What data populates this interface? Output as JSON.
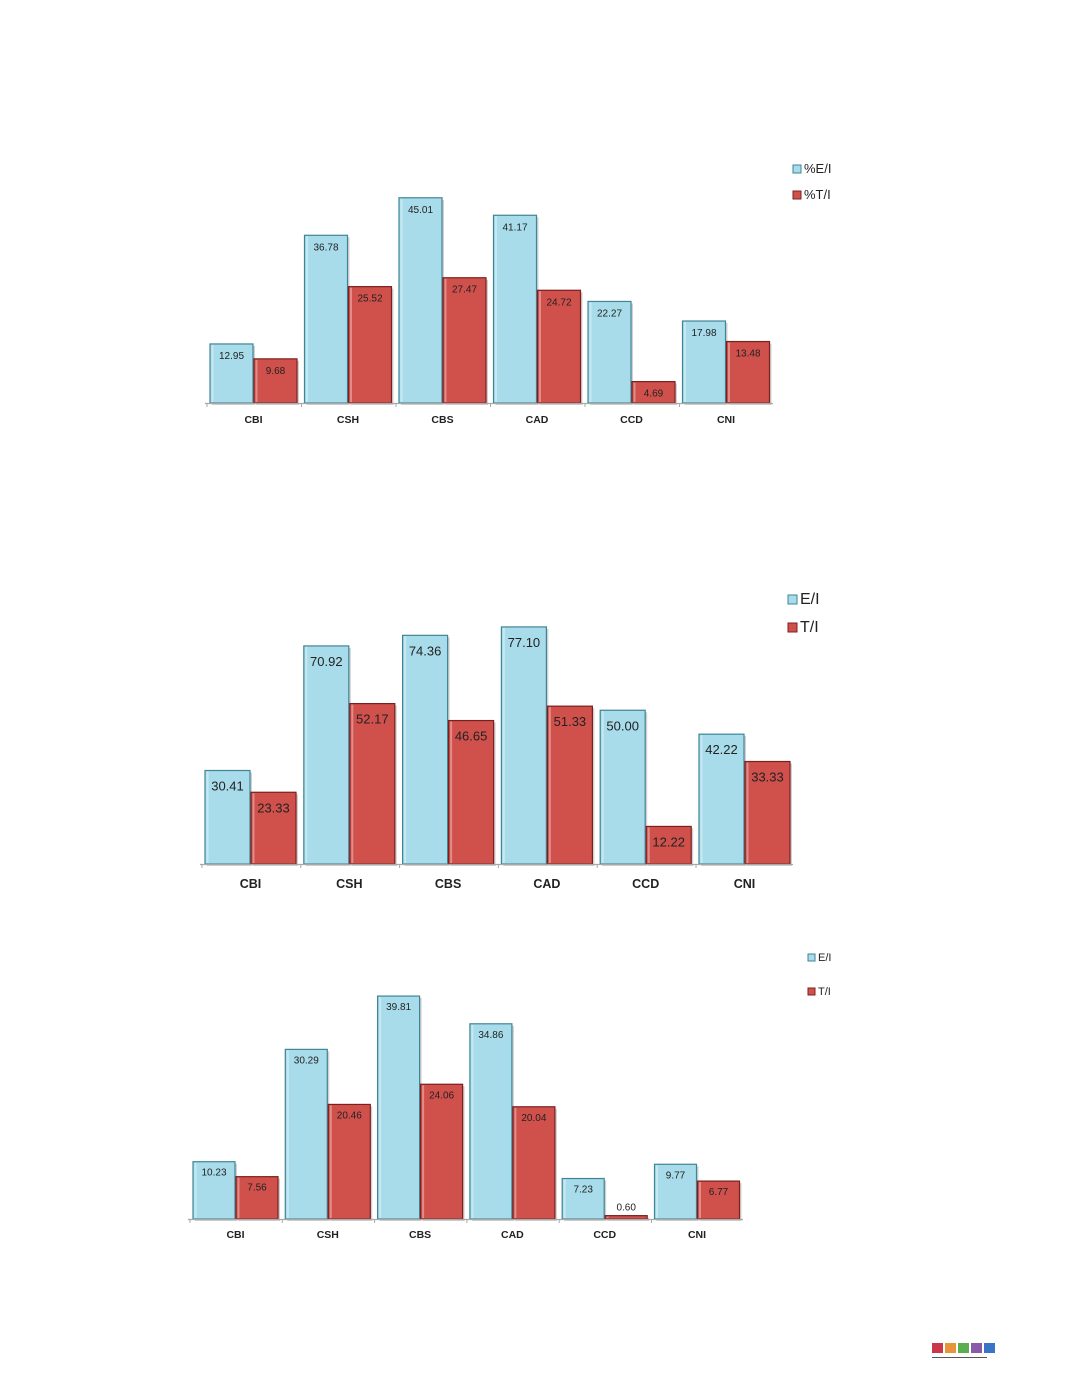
{
  "chart_data": [
    {
      "type": "bar",
      "categories": [
        "CBI",
        "CSH",
        "CBS",
        "CAD",
        "CCD",
        "CNI"
      ],
      "series": [
        {
          "name": "%E/I",
          "values": [
            12.95,
            36.78,
            45.01,
            41.17,
            22.27,
            17.98
          ]
        },
        {
          "name": "%T/I",
          "values": [
            9.68,
            25.52,
            27.47,
            24.72,
            4.69,
            13.48
          ]
        }
      ],
      "value_labels": [
        [
          "12.95",
          "36.78",
          "45.01",
          "41.17",
          "22.27",
          "17.98"
        ],
        [
          "9.68",
          "25.52",
          "27.47",
          "24.72",
          "4.69",
          "13.48"
        ]
      ],
      "title": "",
      "xlabel": "",
      "ylabel": "",
      "ylim": [
        0,
        50
      ],
      "grid": false,
      "legend": "top-right"
    },
    {
      "type": "bar",
      "categories": [
        "CBI",
        "CSH",
        "CBS",
        "CAD",
        "CCD",
        "CNI"
      ],
      "series": [
        {
          "name": "E/I",
          "values": [
            30.41,
            70.92,
            74.36,
            77.1,
            50.0,
            42.22
          ]
        },
        {
          "name": "T/I",
          "values": [
            23.33,
            52.17,
            46.65,
            51.33,
            12.22,
            33.33
          ]
        }
      ],
      "value_labels": [
        [
          "30.41",
          "70.92",
          "74.36",
          "77.10",
          "50.00",
          "42.22"
        ],
        [
          "23.33",
          "52.17",
          "46.65",
          "51.33",
          "12.22",
          "33.33"
        ]
      ],
      "title": "",
      "xlabel": "",
      "ylabel": "",
      "ylim": [
        0,
        80
      ],
      "grid": false,
      "legend": "top-right"
    },
    {
      "type": "bar",
      "categories": [
        "CBI",
        "CSH",
        "CBS",
        "CAD",
        "CCD",
        "CNI"
      ],
      "series": [
        {
          "name": "E/I",
          "values": [
            10.23,
            30.29,
            39.81,
            34.86,
            7.23,
            9.77
          ]
        },
        {
          "name": "T/I",
          "values": [
            7.56,
            20.46,
            24.06,
            20.04,
            0.6,
            6.77
          ]
        }
      ],
      "value_labels": [
        [
          "10.23",
          "30.29",
          "39.81",
          "34.86",
          "7.23",
          "9.77"
        ],
        [
          "7.56",
          "20.46",
          "24.06",
          "20.04",
          "0.60",
          "6.77"
        ]
      ],
      "title": "",
      "xlabel": "",
      "ylabel": "",
      "ylim": [
        0,
        40
      ],
      "grid": false,
      "legend": "top-right"
    }
  ],
  "colors": {
    "series_1_fill": "#a8dcea",
    "series_1_stroke": "#3f8596",
    "series_2_fill": "#d0504c",
    "series_2_stroke": "#7c201e",
    "axis": "#a8a8a8",
    "text": "#222222"
  },
  "footer": {
    "squares": [
      "#c8384a",
      "#e8943a",
      "#5aae4e",
      "#8a5aa8",
      "#3a74c6"
    ]
  }
}
